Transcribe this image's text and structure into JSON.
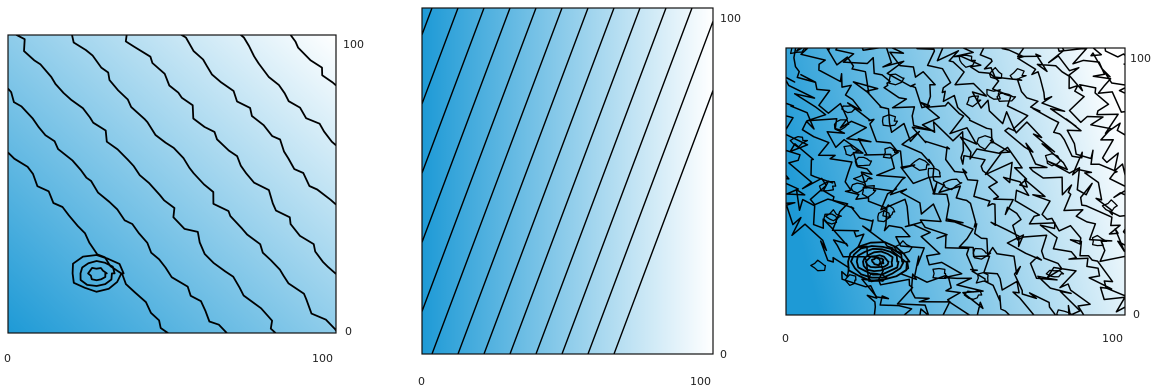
{
  "chart_data": [
    {
      "type": "heatmap",
      "id": "panel-a",
      "description_free": true,
      "xlim": [
        0,
        100
      ],
      "ylim": [
        0,
        100
      ],
      "x_ticks": [
        "0",
        "100"
      ],
      "y_ticks": [
        "0",
        "100"
      ],
      "colormap": [
        "#1e9ad6",
        "#ffffff"
      ],
      "gradient_direction": "increases toward top-right",
      "contours": "wavy diagonal isolines with a closed depression near (30, 20)",
      "grid": false
    },
    {
      "type": "heatmap",
      "id": "panel-b",
      "xlim": [
        0,
        100
      ],
      "ylim": [
        0,
        100
      ],
      "x_ticks": [
        "0",
        "100"
      ],
      "y_ticks": [
        "0",
        "100"
      ],
      "colormap": [
        "#1e9ad6",
        "#ffffff"
      ],
      "gradient_direction": "increases toward right",
      "contours": "straight parallel diagonal isolines",
      "contour_count": 13,
      "grid": false
    },
    {
      "type": "heatmap",
      "id": "panel-c",
      "xlim": [
        0,
        100
      ],
      "ylim": [
        0,
        100
      ],
      "x_ticks": [
        "0",
        "100"
      ],
      "y_ticks": [
        "0",
        "100"
      ],
      "colormap": [
        "#1e9ad6",
        "#ffffff"
      ],
      "gradient_direction": "increases toward right",
      "contours": "highly irregular noisy isolines with a dense cluster near (30, 20)",
      "grid": false
    }
  ],
  "colors": {
    "low": "#1e9ad6",
    "high": "#ffffff",
    "contour": "#000000"
  }
}
